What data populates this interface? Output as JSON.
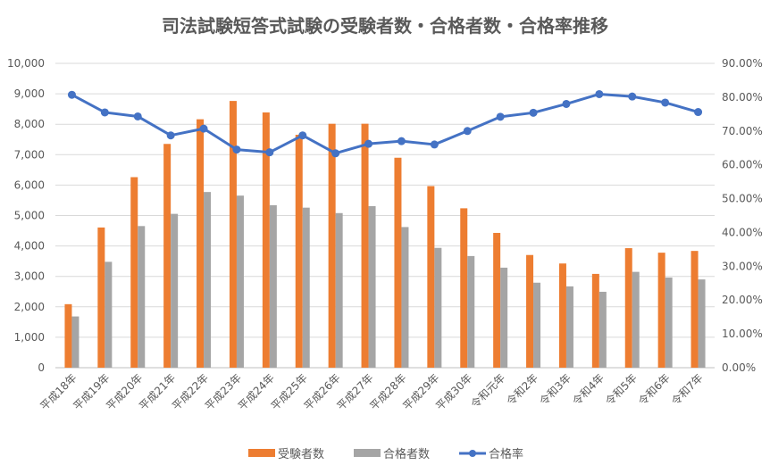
{
  "chart_data": {
    "type": "bar",
    "title": "司法試験短答式試験の受験者数・合格者数・合格率推移",
    "categories": [
      "平成18年",
      "平成19年",
      "平成20年",
      "平成21年",
      "平成22年",
      "平成23年",
      "平成24年",
      "平成25年",
      "平成26年",
      "平成27年",
      "平成28年",
      "平成29年",
      "平成30年",
      "令和元年",
      "令和2年",
      "令和3年",
      "令和4年",
      "令和5年",
      "令和6年",
      "令和7年"
    ],
    "series": [
      {
        "name": "受験者数",
        "type": "bar",
        "axis": "left",
        "color": "#ED7D31",
        "values": [
          2087,
          4607,
          6261,
          7353,
          8163,
          8765,
          8387,
          7653,
          8015,
          8016,
          6899,
          5967,
          5238,
          4429,
          3703,
          3424,
          3082,
          3928,
          3779,
          3837
        ]
      },
      {
        "name": "合格者数",
        "type": "bar",
        "axis": "left",
        "color": "#A5A5A5",
        "values": [
          1684,
          3479,
          4654,
          5055,
          5773,
          5654,
          5339,
          5259,
          5080,
          5308,
          4621,
          3937,
          3669,
          3287,
          2793,
          2672,
          2494,
          3149,
          2962,
          2900
        ]
      },
      {
        "name": "合格率",
        "type": "line",
        "axis": "right",
        "color": "#4472C4",
        "values": [
          80.7,
          75.5,
          74.3,
          68.7,
          70.7,
          64.5,
          63.7,
          68.7,
          63.4,
          66.2,
          67.0,
          66.0,
          70.0,
          74.2,
          75.4,
          78.0,
          80.9,
          80.2,
          78.4,
          75.6
        ]
      }
    ],
    "y_left": {
      "min": 0,
      "max": 10000,
      "ticks": [
        "0",
        "1,000",
        "2,000",
        "3,000",
        "4,000",
        "5,000",
        "6,000",
        "7,000",
        "8,000",
        "9,000",
        "10,000"
      ]
    },
    "y_right": {
      "min": 0,
      "max": 90,
      "ticks": [
        "0.00%",
        "10.00%",
        "20.00%",
        "30.00%",
        "40.00%",
        "50.00%",
        "60.00%",
        "70.00%",
        "80.00%",
        "90.00%"
      ]
    },
    "grid": true,
    "legend": "bottom"
  }
}
